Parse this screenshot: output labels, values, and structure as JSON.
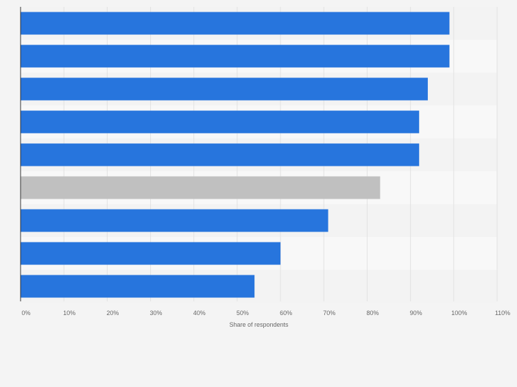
{
  "chart_data": {
    "type": "bar",
    "orientation": "horizontal",
    "categories": [
      "",
      "",
      "",
      "",
      "",
      "",
      "",
      "",
      ""
    ],
    "values": [
      99,
      99,
      94,
      92,
      92,
      83,
      71,
      60,
      54
    ],
    "highlight_index": 5,
    "xlabel": "Share of respondents",
    "ylabel": "",
    "xlim": [
      0,
      110
    ],
    "x_ticks": [
      0,
      10,
      20,
      30,
      40,
      50,
      60,
      70,
      80,
      90,
      100,
      110
    ],
    "x_tick_labels": [
      "0%",
      "10%",
      "20%",
      "30%",
      "40%",
      "50%",
      "60%",
      "70%",
      "80%",
      "90%",
      "100%",
      "110%"
    ],
    "grid": true,
    "legend": "none"
  },
  "colors": {
    "bar": "#2775dd",
    "highlight": "#c0c0c0",
    "band_dark": "#f3f3f3",
    "band_light": "#f8f8f8",
    "grid": "#e2e2e2",
    "axis": "#333333",
    "text": "#666666"
  }
}
